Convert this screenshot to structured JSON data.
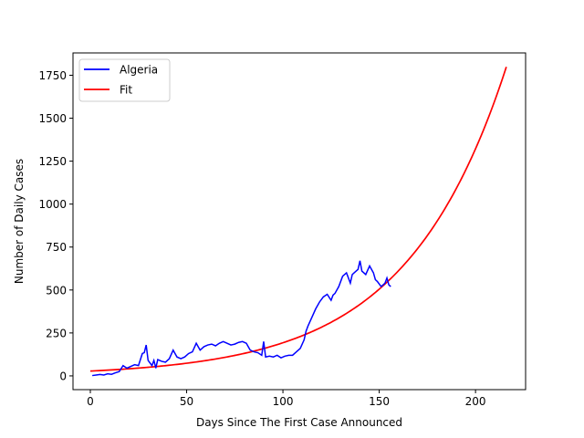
{
  "chart_data": {
    "type": "line",
    "title": "",
    "xlabel": "Days Since The First Case Announced",
    "ylabel": "Number of Daily Cases",
    "xlim": [
      -9,
      226
    ],
    "ylim": [
      -80,
      1880
    ],
    "xticks": [
      0,
      50,
      100,
      150,
      200
    ],
    "yticks": [
      0,
      250,
      500,
      750,
      1000,
      1250,
      1500,
      1750
    ],
    "grid": false,
    "legend_position": "top-left",
    "series": [
      {
        "name": "Algeria",
        "color": "#0000ff",
        "x": [
          1,
          3,
          5,
          7,
          9,
          11,
          13,
          15,
          17,
          19,
          21,
          23,
          25,
          27,
          28,
          29,
          30,
          32,
          33,
          34,
          35,
          37,
          39,
          41,
          43,
          45,
          47,
          49,
          51,
          53,
          55,
          57,
          59,
          61,
          63,
          65,
          67,
          69,
          71,
          73,
          75,
          77,
          79,
          81,
          83,
          85,
          87,
          89,
          90,
          91,
          93,
          95,
          97,
          99,
          101,
          103,
          105,
          107,
          109,
          111,
          112,
          113,
          115,
          117,
          119,
          121,
          123,
          125,
          126,
          127,
          129,
          131,
          133,
          135,
          136,
          137,
          139,
          140,
          141,
          143,
          145,
          147,
          148,
          149,
          151,
          153,
          154,
          155,
          156
        ],
        "y": [
          2,
          5,
          8,
          5,
          12,
          9,
          18,
          25,
          60,
          45,
          55,
          65,
          60,
          130,
          135,
          180,
          90,
          60,
          90,
          45,
          95,
          85,
          80,
          100,
          150,
          110,
          100,
          110,
          130,
          140,
          190,
          150,
          170,
          180,
          185,
          175,
          190,
          200,
          190,
          180,
          185,
          195,
          200,
          190,
          150,
          140,
          135,
          120,
          200,
          110,
          115,
          110,
          120,
          105,
          115,
          120,
          120,
          140,
          160,
          210,
          260,
          290,
          340,
          390,
          430,
          460,
          475,
          440,
          470,
          480,
          520,
          580,
          600,
          540,
          590,
          600,
          620,
          670,
          610,
          590,
          640,
          600,
          560,
          550,
          520,
          540,
          570,
          530,
          520
        ]
      },
      {
        "name": "Fit",
        "color": "#ff0000",
        "fit": {
          "a": 28.13,
          "b": 0.01925
        },
        "x_range": [
          0,
          216
        ]
      }
    ]
  }
}
